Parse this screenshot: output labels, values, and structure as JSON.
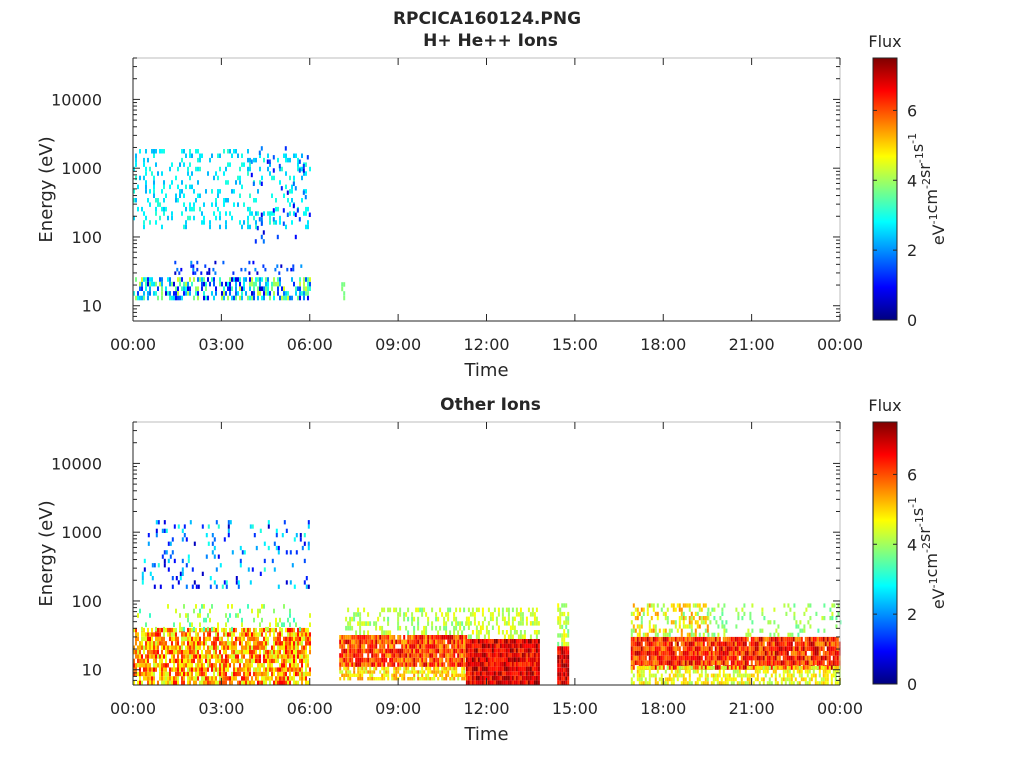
{
  "figure": {
    "title": "RPCICA160124.PNG",
    "colors": {
      "axis": "#262626",
      "background": "#ffffff"
    },
    "colormap": [
      "#00007f",
      "#0000ff",
      "#0080ff",
      "#00ffff",
      "#80ff80",
      "#ffff00",
      "#ff8000",
      "#ff0000",
      "#7f0000"
    ]
  },
  "chart_data": [
    {
      "type": "heatmap",
      "title": "H+ He++ Ions",
      "xlabel": "Time",
      "ylabel": "Energy (eV)",
      "x_ticks": [
        "00:00",
        "03:00",
        "06:00",
        "09:00",
        "12:00",
        "15:00",
        "18:00",
        "21:00",
        "00:00"
      ],
      "xlim_hours": [
        0,
        24
      ],
      "y_scale": "log",
      "ylim": [
        6,
        40000
      ],
      "y_ticks": [
        {
          "value": 10,
          "label": "10"
        },
        {
          "value": 100,
          "label": "100"
        },
        {
          "value": 1000,
          "label": "1000"
        },
        {
          "value": 10000,
          "label": "10000"
        }
      ],
      "colorbar": {
        "title": "Flux",
        "label": "eV-1cm-2sr-1s-1",
        "range": [
          0,
          7.5
        ],
        "ticks": [
          0,
          2,
          4,
          6
        ]
      },
      "regions": [
        {
          "t0": 0.0,
          "t1": 6.0,
          "e0": 12,
          "e1": 26,
          "flux": [
            0.6,
            4.5
          ],
          "density": 0.55
        },
        {
          "t0": 1.2,
          "t1": 6.0,
          "e0": 28,
          "e1": 45,
          "flux": [
            0.5,
            2.2
          ],
          "density": 0.12
        },
        {
          "t0": 0.0,
          "t1": 6.0,
          "e0": 130,
          "e1": 1900,
          "flux": [
            2.2,
            3.2
          ],
          "density": 0.18
        },
        {
          "t0": 4.0,
          "t1": 6.0,
          "e0": 80,
          "e1": 1800,
          "flux": [
            0.6,
            2.0
          ],
          "density": 0.07
        },
        {
          "t0": 7.0,
          "t1": 7.15,
          "e0": 12,
          "e1": 22,
          "flux": [
            3.6,
            3.9
          ],
          "density": 0.5
        }
      ]
    },
    {
      "type": "heatmap",
      "title": "Other Ions",
      "xlabel": "Time",
      "ylabel": "Energy (eV)",
      "x_ticks": [
        "00:00",
        "03:00",
        "06:00",
        "09:00",
        "12:00",
        "15:00",
        "18:00",
        "21:00",
        "00:00"
      ],
      "xlim_hours": [
        0,
        24
      ],
      "y_scale": "log",
      "ylim": [
        6,
        40000
      ],
      "y_ticks": [
        {
          "value": 10,
          "label": "10"
        },
        {
          "value": 100,
          "label": "100"
        },
        {
          "value": 1000,
          "label": "1000"
        },
        {
          "value": 10000,
          "label": "10000"
        }
      ],
      "colorbar": {
        "title": "Flux",
        "label": "eV-1cm-2sr-1s-1",
        "range": [
          0,
          7.5
        ],
        "ticks": [
          0,
          2,
          4,
          6
        ]
      },
      "regions": [
        {
          "t0": 0.0,
          "t1": 6.0,
          "e0": 6,
          "e1": 35,
          "flux": [
            4.2,
            6.6
          ],
          "density": 0.8
        },
        {
          "t0": 0.0,
          "t1": 6.0,
          "e0": 36,
          "e1": 90,
          "flux": [
            3.2,
            4.6
          ],
          "density": 0.15
        },
        {
          "t0": 0.3,
          "t1": 6.0,
          "e0": 150,
          "e1": 1500,
          "flux": [
            0.4,
            3.2
          ],
          "density": 0.12
        },
        {
          "t0": 7.0,
          "t1": 11.3,
          "e0": 11,
          "e1": 32,
          "flux": [
            5.2,
            7.0
          ],
          "density": 0.95
        },
        {
          "t0": 7.0,
          "t1": 11.3,
          "e0": 7,
          "e1": 11,
          "flux": [
            4.2,
            5.6
          ],
          "density": 0.7
        },
        {
          "t0": 7.2,
          "t1": 11.3,
          "e0": 32,
          "e1": 80,
          "flux": [
            3.6,
            4.6
          ],
          "density": 0.35
        },
        {
          "t0": 11.3,
          "t1": 13.8,
          "e0": 6,
          "e1": 28,
          "flux": [
            6.0,
            7.5
          ],
          "density": 1.0
        },
        {
          "t0": 11.3,
          "t1": 13.8,
          "e0": 28,
          "e1": 80,
          "flux": [
            3.8,
            4.8
          ],
          "density": 0.4
        },
        {
          "t0": 14.4,
          "t1": 14.8,
          "e0": 6,
          "e1": 22,
          "flux": [
            6.2,
            7.4
          ],
          "density": 1.0
        },
        {
          "t0": 14.4,
          "t1": 14.8,
          "e0": 22,
          "e1": 80,
          "flux": [
            3.6,
            4.8
          ],
          "density": 0.6
        },
        {
          "t0": 16.9,
          "t1": 24.0,
          "e0": 10,
          "e1": 30,
          "flux": [
            5.4,
            7.2
          ],
          "density": 0.95
        },
        {
          "t0": 16.9,
          "t1": 24.0,
          "e0": 6,
          "e1": 10,
          "flux": [
            4.0,
            5.2
          ],
          "density": 0.6
        },
        {
          "t0": 16.9,
          "t1": 19.5,
          "e0": 30,
          "e1": 80,
          "flux": [
            3.6,
            5.6
          ],
          "density": 0.45
        },
        {
          "t0": 19.5,
          "t1": 24.0,
          "e0": 30,
          "e1": 80,
          "flux": [
            3.4,
            4.4
          ],
          "density": 0.15
        }
      ]
    }
  ]
}
